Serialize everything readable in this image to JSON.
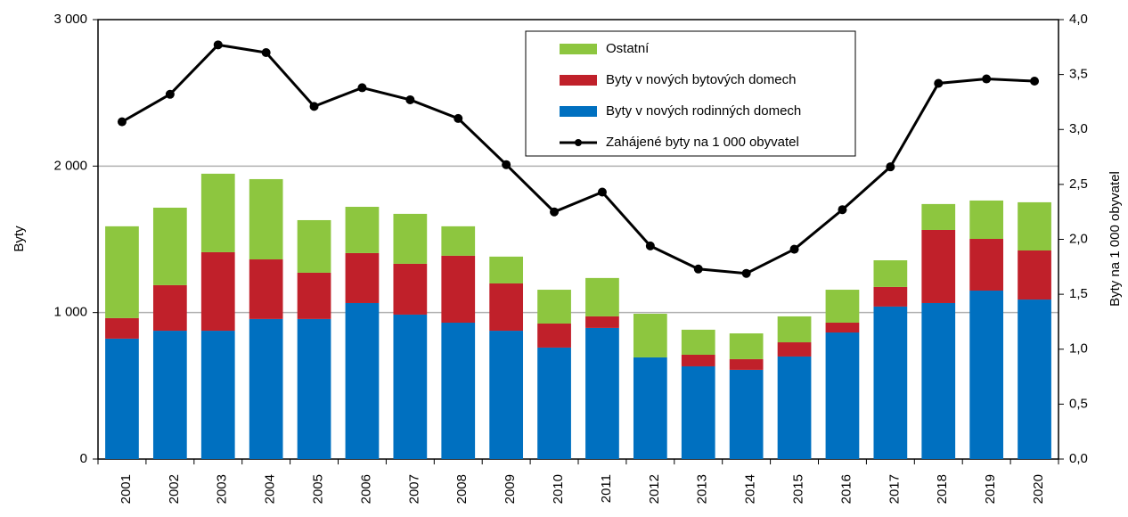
{
  "chart_data": {
    "type": "bar",
    "categories": [
      "2001",
      "2002",
      "2003",
      "2004",
      "2005",
      "2006",
      "2007",
      "2008",
      "2009",
      "2010",
      "2011",
      "2012",
      "2013",
      "2014",
      "2015",
      "2016",
      "2017",
      "2018",
      "2019",
      "2020"
    ],
    "series": [
      {
        "name": "Byty v nových rodinných domech",
        "color": "#0070c0",
        "values": [
          822,
          876,
          876,
          956,
          956,
          1065,
          986,
          931,
          876,
          761,
          895,
          694,
          633,
          609,
          700,
          864,
          1041,
          1065,
          1150,
          1089
        ]
      },
      {
        "name": "Byty v nových bytových domech",
        "color": "#c0202a",
        "values": [
          140,
          311,
          536,
          407,
          316,
          341,
          347,
          457,
          323,
          164,
          79,
          0,
          79,
          73,
          97,
          67,
          134,
          499,
          353,
          335
        ]
      },
      {
        "name": "Ostatní",
        "color": "#8dc63f",
        "values": [
          627,
          529,
          536,
          548,
          359,
          316,
          341,
          201,
          183,
          231,
          262,
          298,
          171,
          176,
          177,
          225,
          182,
          177,
          262,
          329
        ]
      },
      {
        "name": "Zahájené byty na 1 000 obyvatel",
        "color": "#000000",
        "type": "line",
        "axis": "y2",
        "values": [
          3.07,
          3.32,
          3.77,
          3.7,
          3.21,
          3.38,
          3.27,
          3.1,
          2.68,
          2.25,
          2.43,
          1.94,
          1.73,
          1.69,
          1.91,
          2.27,
          2.66,
          3.42,
          3.46,
          3.44
        ]
      }
    ],
    "ylabel": "Byty",
    "y2label": "Byty na 1 000 obyvatel",
    "ylim": [
      0,
      3000
    ],
    "yticks": [
      0,
      {
        "value": 1000,
        "label": "1 000"
      },
      {
        "value": 2000,
        "label": "2 000"
      },
      {
        "value": 3000,
        "label": "3 000"
      }
    ],
    "y2lim": [
      0,
      4
    ],
    "y2ticks": [
      {
        "value": 0,
        "label": "0,0"
      },
      {
        "value": 0.5,
        "label": "0,5"
      },
      {
        "value": 1,
        "label": "1,0"
      },
      {
        "value": 1.5,
        "label": "1,5"
      },
      {
        "value": 2,
        "label": "2,0"
      },
      {
        "value": 2.5,
        "label": "2,5"
      },
      {
        "value": 3,
        "label": "3,0"
      },
      {
        "value": 3.5,
        "label": "3,5"
      },
      {
        "value": 4,
        "label": "4,0"
      }
    ],
    "grid": true,
    "legend": "top-right"
  }
}
